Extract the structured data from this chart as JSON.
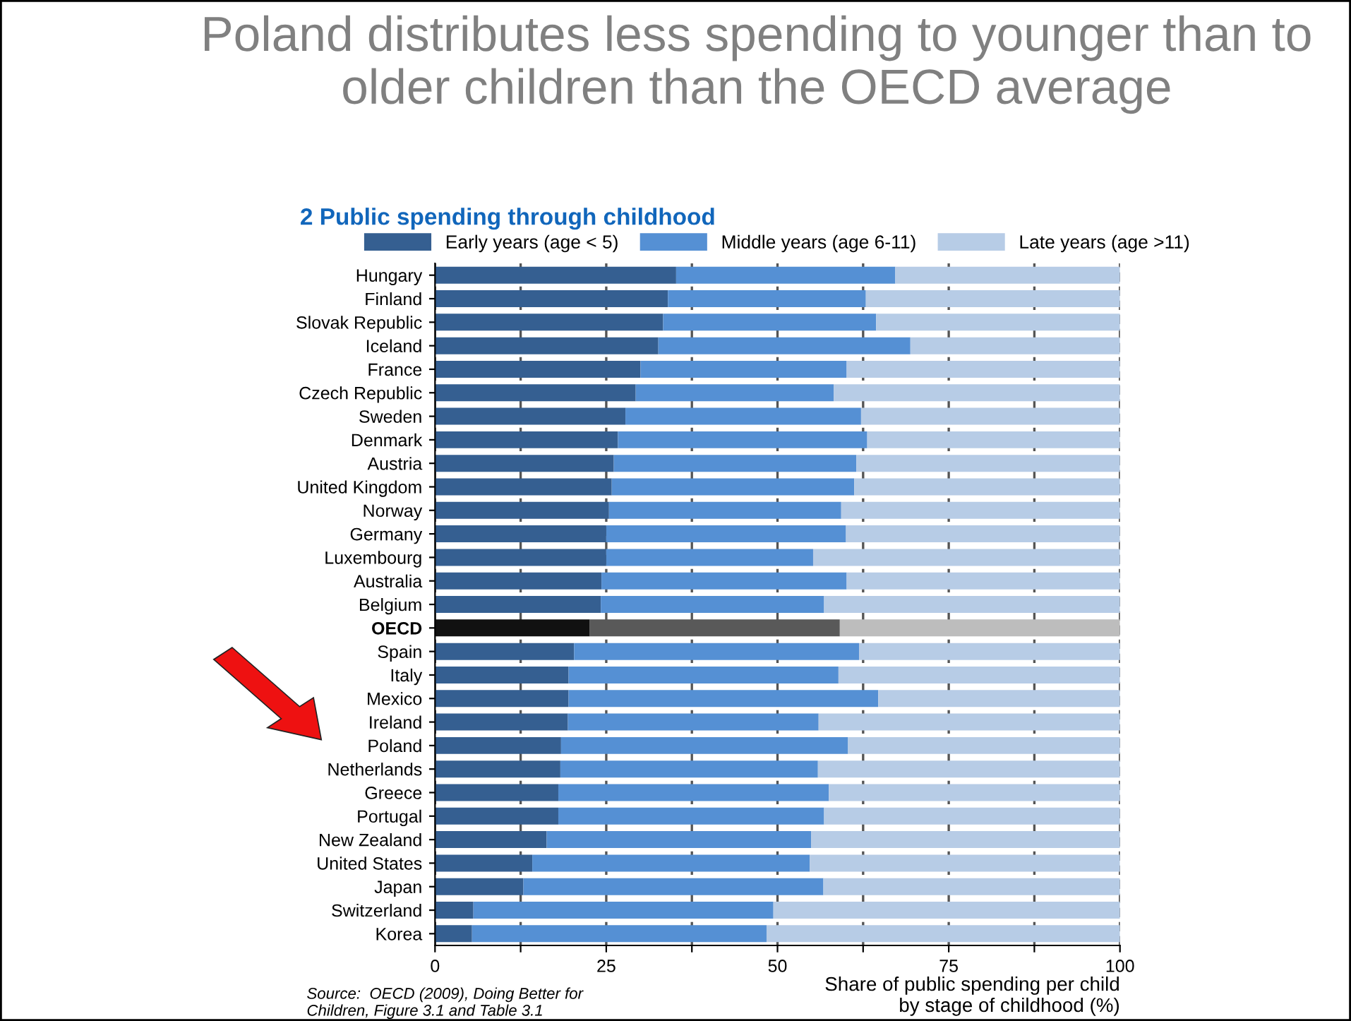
{
  "chart_data": {
    "type": "bar",
    "orientation": "horizontal",
    "stacked": true,
    "title": "Poland distributes less spending to younger than to older children than the OECD average",
    "subtitle": "2 Public spending through childhood",
    "xlabel": "Share of public spending per child\nby stage of childhood (%)",
    "annotations": [
      "Source:  OECD (2009), Doing Better for\nChildren, Figure 3.1 and Table 3.1"
    ],
    "categories": [
      "Hungary",
      "Finland",
      "Slovak Republic",
      "Iceland",
      "France",
      "Czech Republic",
      "Sweden",
      "Denmark",
      "Austria",
      "United Kingdom",
      "Norway",
      "Germany",
      "Luxembourg",
      "Australia",
      "Belgium",
      "OECD",
      "Spain",
      "Italy",
      "Mexico",
      "Ireland",
      "Poland",
      "Netherlands",
      "Greece",
      "Portugal",
      "New Zealand",
      "United States",
      "Japan",
      "Switzerland",
      "Korea"
    ],
    "series": [
      {
        "name": "Early years (age < 5)",
        "color": "#355f91",
        "colors": [
          "#355f91",
          "#355f91",
          "#355f91",
          "#355f91",
          "#355f91",
          "#355f91",
          "#355f91",
          "#355f91",
          "#355f91",
          "#355f91",
          "#355f91",
          "#355f91",
          "#355f91",
          "#355f91",
          "#355f91",
          "#111111",
          "#355f91",
          "#355f91",
          "#355f91",
          "#355f91",
          "#355f91",
          "#355f91",
          "#355f91",
          "#355f91",
          "#355f91",
          "#355f91",
          "#355f91",
          "#355f91",
          "#355f91"
        ],
        "values": [
          35.2,
          34.0,
          33.3,
          32.6,
          30.0,
          29.3,
          27.8,
          26.7,
          26.1,
          25.8,
          25.4,
          25.0,
          25.0,
          24.3,
          24.2,
          22.6,
          20.3,
          19.5,
          19.5,
          19.4,
          18.4,
          18.3,
          18.0,
          18.0,
          16.3,
          14.2,
          12.9,
          5.6,
          5.4
        ]
      },
      {
        "name": "Middle years (age 6-11)",
        "color": "#5590d4",
        "colors": [
          "#5590d4",
          "#5590d4",
          "#5590d4",
          "#5590d4",
          "#5590d4",
          "#5590d4",
          "#5590d4",
          "#5590d4",
          "#5590d4",
          "#5590d4",
          "#5590d4",
          "#5590d4",
          "#5590d4",
          "#5590d4",
          "#5590d4",
          "#595959",
          "#5590d4",
          "#5590d4",
          "#5590d4",
          "#5590d4",
          "#5590d4",
          "#5590d4",
          "#5590d4",
          "#5590d4",
          "#5590d4",
          "#5590d4",
          "#5590d4",
          "#5590d4",
          "#5590d4"
        ],
        "values": [
          32.0,
          28.9,
          31.1,
          36.8,
          30.1,
          28.9,
          34.4,
          36.4,
          35.4,
          35.4,
          33.9,
          35.0,
          30.2,
          35.8,
          32.6,
          36.5,
          41.6,
          39.4,
          45.2,
          36.6,
          41.9,
          37.6,
          39.5,
          38.8,
          38.6,
          40.5,
          43.8,
          43.8,
          43.0
        ]
      },
      {
        "name": "Late years (age >11)",
        "color": "#b7cce6",
        "colors": [
          "#b7cce6",
          "#b7cce6",
          "#b7cce6",
          "#b7cce6",
          "#b7cce6",
          "#b7cce6",
          "#b7cce6",
          "#b7cce6",
          "#b7cce6",
          "#b7cce6",
          "#b7cce6",
          "#b7cce6",
          "#b7cce6",
          "#b7cce6",
          "#b7cce6",
          "#bdbdbd",
          "#b7cce6",
          "#b7cce6",
          "#b7cce6",
          "#b7cce6",
          "#b7cce6",
          "#b7cce6",
          "#b7cce6",
          "#b7cce6",
          "#b7cce6",
          "#b7cce6",
          "#b7cce6",
          "#b7cce6",
          "#b7cce6"
        ],
        "values": [
          32.8,
          37.1,
          35.6,
          30.6,
          39.9,
          41.8,
          37.8,
          36.9,
          38.5,
          38.8,
          40.7,
          40.0,
          44.8,
          39.9,
          43.2,
          40.9,
          38.1,
          41.1,
          35.3,
          44.0,
          39.7,
          44.1,
          42.5,
          43.2,
          45.1,
          45.3,
          43.3,
          50.6,
          51.6
        ]
      }
    ],
    "xlim": [
      0,
      100
    ],
    "xticks": [
      0,
      {
        "value": 12.5,
        "label": null
      },
      25,
      {
        "value": 37.5,
        "label": null
      },
      50,
      {
        "value": 62.5,
        "label": null
      },
      75,
      {
        "value": 87.5,
        "label": null
      },
      100
    ],
    "grid": "x",
    "legend": "top"
  }
}
